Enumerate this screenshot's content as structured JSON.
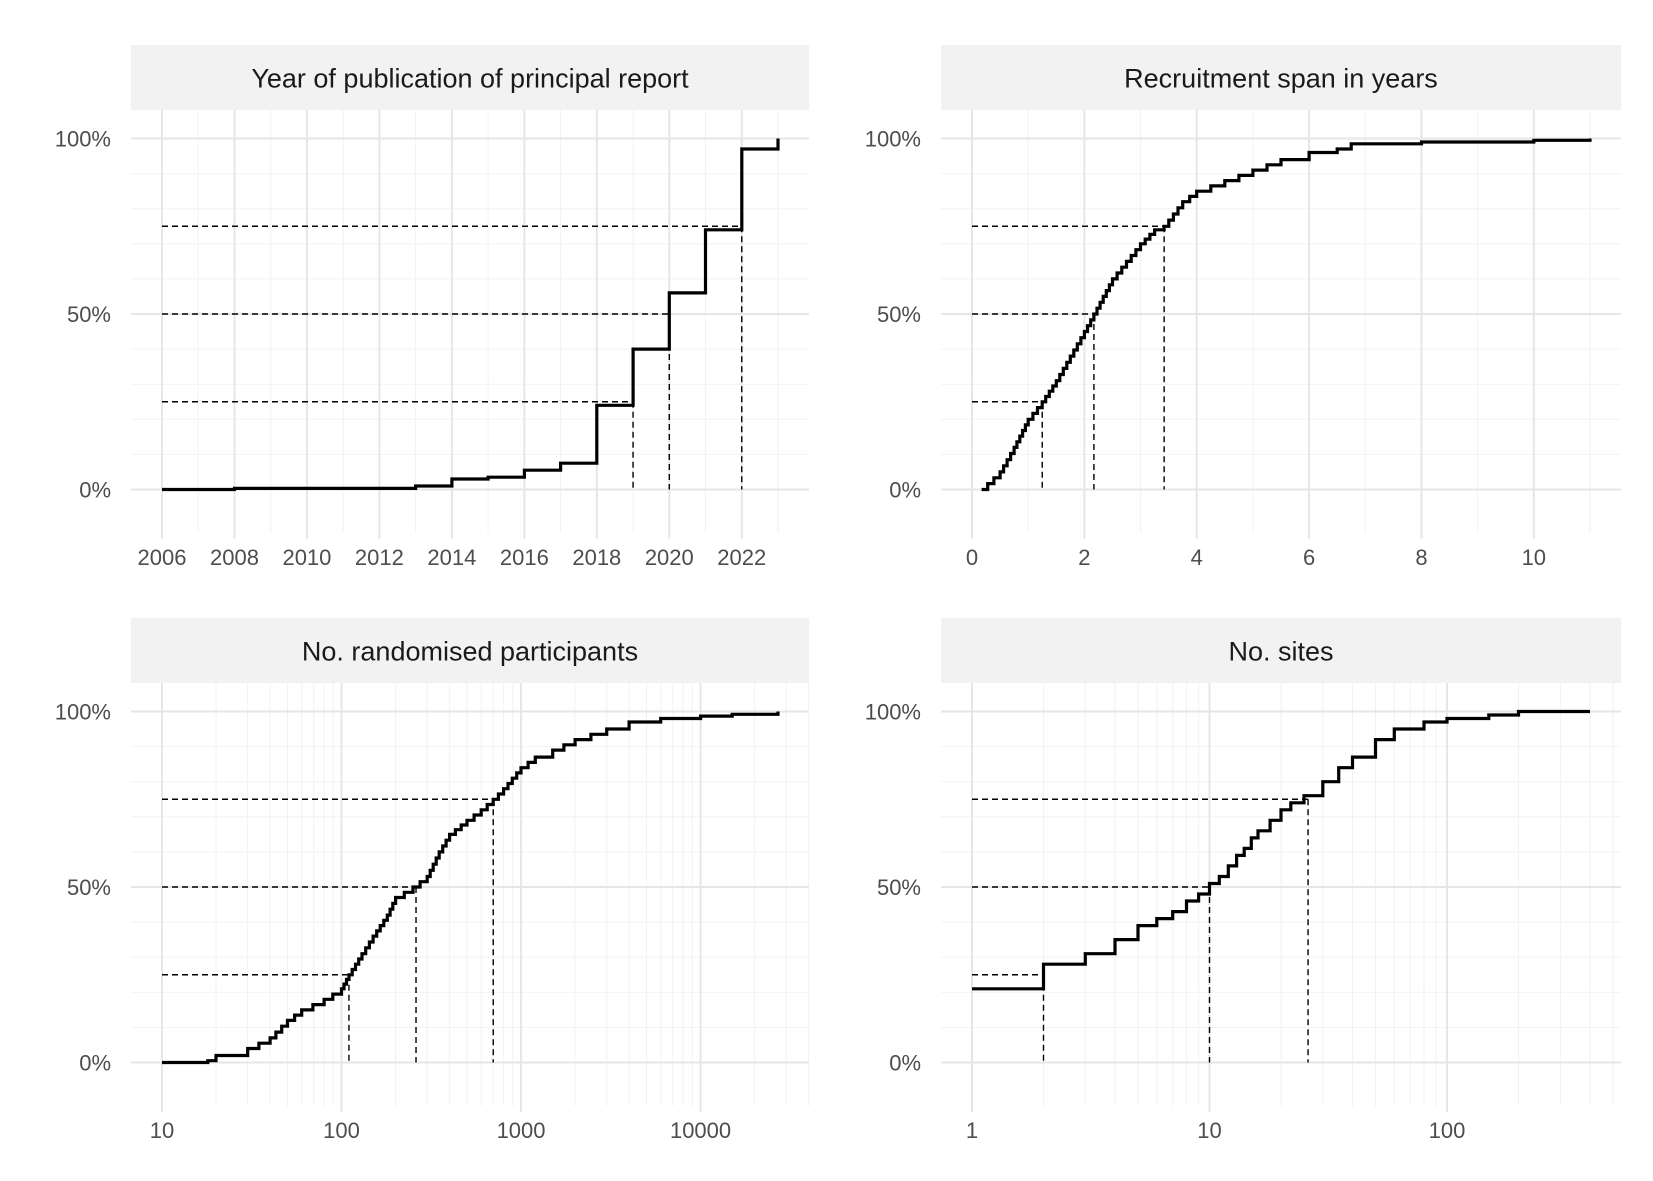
{
  "chart_data": [
    {
      "type": "line",
      "title": "Year of publication of principal report",
      "x_scale": "linear",
      "xlim": [
        2006,
        2023
      ],
      "ylim": [
        0,
        100
      ],
      "x_ticks": [
        2006,
        2008,
        2010,
        2012,
        2014,
        2016,
        2018,
        2020,
        2022
      ],
      "x_tick_labels": [
        "2006",
        "2008",
        "2010",
        "2012",
        "2014",
        "2016",
        "2018",
        "2020",
        "2022"
      ],
      "y_ticks": [
        0,
        50,
        100
      ],
      "y_tick_labels": [
        "0%",
        "50%",
        "100%"
      ],
      "grid": true,
      "series": [
        {
          "values_kind": "step",
          "x": [
            2006,
            2008,
            2008,
            2013,
            2013,
            2014,
            2014,
            2015,
            2015,
            2016,
            2016,
            2017,
            2017,
            2018,
            2018,
            2019,
            2019,
            2020,
            2020,
            2021,
            2021,
            2022,
            2022,
            2023,
            2023
          ],
          "y": [
            0,
            0,
            0.3,
            0.3,
            1,
            1,
            3,
            3,
            3.5,
            3.5,
            5.5,
            5.5,
            7.5,
            7.5,
            24,
            24,
            40,
            40,
            56,
            56,
            74,
            74,
            97,
            97,
            100
          ]
        }
      ],
      "quartiles": [
        {
          "percent": 25,
          "x": 2019
        },
        {
          "percent": 50,
          "x": 2020
        },
        {
          "percent": 75,
          "x": 2022
        }
      ]
    },
    {
      "type": "line",
      "title": "Recruitment span in years",
      "x_scale": "linear",
      "xlim": [
        0,
        11
      ],
      "ylim": [
        0,
        100
      ],
      "x_ticks": [
        0,
        2,
        4,
        6,
        8,
        10
      ],
      "x_tick_labels": [
        "0",
        "2",
        "4",
        "6",
        "8",
        "10"
      ],
      "y_ticks": [
        0,
        50,
        100
      ],
      "y_tick_labels": [
        "0%",
        "50%",
        "100%"
      ],
      "grid": true,
      "series": [
        {
          "values_kind": "ecdf",
          "x": [
            0.17,
            0.5,
            0.75,
            1.0,
            1.25,
            1.5,
            1.75,
            2.0,
            2.17,
            2.5,
            2.75,
            3.0,
            3.25,
            3.42,
            3.75,
            4.0,
            4.5,
            5.0,
            5.5,
            6.0,
            6.5,
            6.75,
            8.0,
            10.0,
            11.0
          ],
          "y": [
            0,
            5,
            12,
            20,
            25,
            31,
            38,
            45,
            50,
            60,
            65,
            70,
            74,
            75,
            82,
            85,
            88,
            91,
            94,
            96,
            97,
            98.5,
            99,
            99.5,
            100
          ]
        }
      ],
      "quartiles": [
        {
          "percent": 25,
          "x": 1.25
        },
        {
          "percent": 50,
          "x": 2.17
        },
        {
          "percent": 75,
          "x": 3.42
        }
      ]
    },
    {
      "type": "line",
      "title": "No. randomised participants",
      "x_scale": "log10",
      "xlim": [
        10,
        27000
      ],
      "ylim": [
        0,
        100
      ],
      "x_ticks": [
        10,
        100,
        1000,
        10000
      ],
      "x_tick_labels": [
        "10",
        "100",
        "1000",
        "10000"
      ],
      "y_ticks": [
        0,
        50,
        100
      ],
      "y_tick_labels": [
        "0%",
        "50%",
        "100%"
      ],
      "grid": true,
      "series": [
        {
          "values_kind": "ecdf",
          "x": [
            10,
            18,
            20,
            30,
            40,
            50,
            60,
            80,
            100,
            110,
            130,
            150,
            180,
            200,
            250,
            300,
            350,
            400,
            500,
            600,
            700,
            800,
            1000,
            1200,
            1500,
            2000,
            3000,
            4000,
            6000,
            10000,
            15000,
            27000
          ],
          "y": [
            0,
            0.5,
            2,
            4,
            7,
            12,
            15,
            18,
            21,
            25,
            31,
            36,
            42,
            47,
            50,
            53,
            60,
            65,
            69,
            72,
            75,
            78,
            84,
            87,
            89,
            92,
            95,
            97,
            98,
            98.7,
            99.2,
            100
          ]
        }
      ],
      "quartiles": [
        {
          "percent": 25,
          "x": 110
        },
        {
          "percent": 50,
          "x": 260
        },
        {
          "percent": 75,
          "x": 700
        }
      ]
    },
    {
      "type": "line",
      "title": "No. sites",
      "x_scale": "log10",
      "xlim": [
        1,
        400
      ],
      "ylim": [
        0,
        100
      ],
      "x_ticks": [
        1,
        10,
        100
      ],
      "x_tick_labels": [
        "1",
        "10",
        "100"
      ],
      "y_ticks": [
        0,
        50,
        100
      ],
      "y_tick_labels": [
        "0%",
        "50%",
        "100%"
      ],
      "grid": true,
      "series": [
        {
          "values_kind": "step",
          "x": [
            1,
            2,
            2,
            3,
            3,
            4,
            4,
            5,
            5,
            6,
            6,
            7,
            7,
            8,
            8,
            9,
            9,
            10,
            10,
            11,
            11,
            12,
            12,
            13,
            13,
            14,
            14,
            15,
            15,
            16,
            16,
            18,
            18,
            20,
            20,
            22,
            22,
            25,
            25,
            30,
            30,
            35,
            35,
            40,
            40,
            50,
            50,
            60,
            60,
            80,
            80,
            100,
            100,
            150,
            150,
            200,
            200,
            400
          ],
          "y": [
            21,
            21,
            28,
            28,
            31,
            31,
            35,
            35,
            39,
            39,
            41,
            41,
            43,
            43,
            46,
            46,
            48,
            48,
            51,
            51,
            53,
            53,
            56,
            56,
            59,
            59,
            61,
            61,
            64,
            64,
            66,
            66,
            69,
            69,
            72,
            72,
            74,
            74,
            76,
            76,
            80,
            80,
            84,
            84,
            87,
            87,
            92,
            92,
            95,
            95,
            97,
            97,
            98,
            98,
            99,
            99,
            100,
            100
          ]
        }
      ],
      "quartiles": [
        {
          "percent": 25,
          "x": 2
        },
        {
          "percent": 50,
          "x": 10
        },
        {
          "percent": 75,
          "x": 26
        }
      ]
    }
  ]
}
